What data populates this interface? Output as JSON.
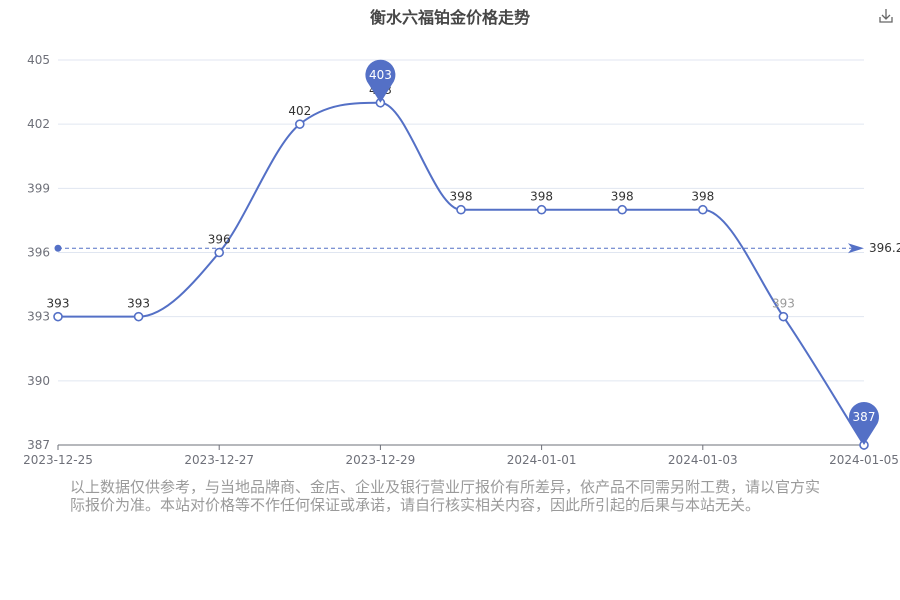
{
  "title": "衡水六福铂金价格走势",
  "toolbar": {
    "download_icon": "download-icon"
  },
  "disclaimer": "以上数据仅供参考，与当地品牌商、金店、企业及银行营业厅报价有所差异，依产品不同需另附工费，请以官方实际报价为准。本站对价格等不作任何保证或承诺，请自行核实相关内容，因此所引起的后果与本站无关。",
  "colors": {
    "line": "#5470c6",
    "axis": "#6e7079",
    "grid": "#e0e6f1",
    "label": "#333333",
    "faded_label": "#9a9a9a"
  },
  "chart_data": {
    "type": "line",
    "x": [
      "2023-12-25",
      "2023-12-26",
      "2023-12-27",
      "2023-12-28",
      "2023-12-29",
      "2023-12-30",
      "2024-01-01",
      "2024-01-02",
      "2024-01-03",
      "2024-01-04",
      "2024-01-05"
    ],
    "x_tick_labels": [
      "2023-12-25",
      "2023-12-27",
      "2023-12-29",
      "2024-01-01",
      "2024-01-03",
      "2024-01-05"
    ],
    "series": [
      {
        "values": [
          393,
          393,
          396,
          402,
          403,
          398,
          398,
          398,
          398,
          393,
          387
        ],
        "labels": [
          "393",
          "393",
          "396",
          "402",
          "403",
          "398",
          "398",
          "398",
          "398",
          "393",
          ""
        ]
      }
    ],
    "y_ticks": [
      387,
      390,
      393,
      396,
      399,
      402,
      405
    ],
    "ylim": [
      387,
      405
    ],
    "markers": {
      "max": {
        "label": "403",
        "index": 4
      },
      "min": {
        "label": "387",
        "index": 10
      }
    },
    "average": {
      "value": 396.2,
      "label": "396.2"
    },
    "grid": true
  }
}
